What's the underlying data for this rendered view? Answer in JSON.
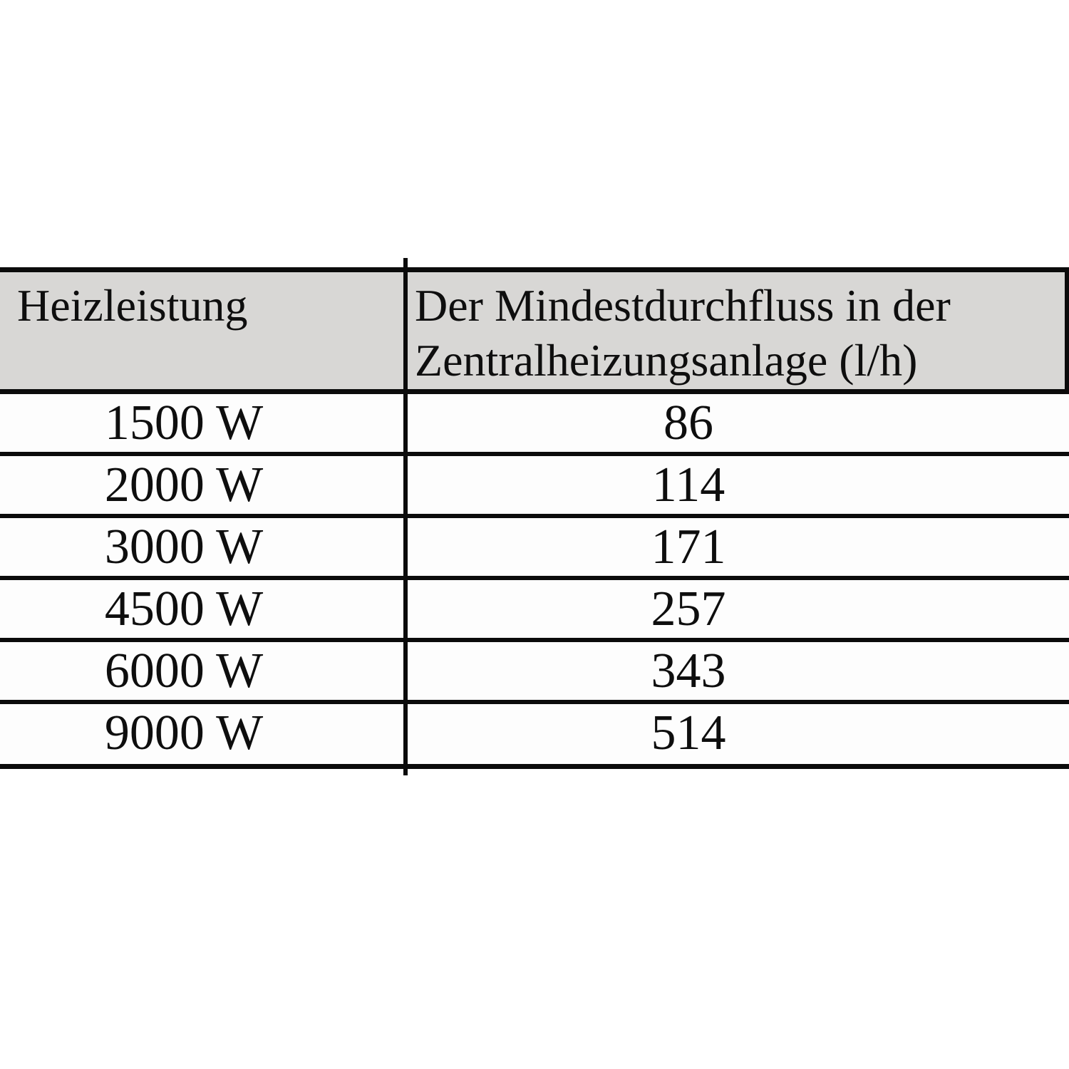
{
  "table": {
    "header": {
      "power_label": "Heizleistung",
      "flow_label_line1": "Der Mindestdurchfluss in der",
      "flow_label_line2": "Zentralheizungsanlage (l/h)"
    },
    "rows": [
      {
        "power": "1500 W",
        "flow": "86"
      },
      {
        "power": "2000 W",
        "flow": "114"
      },
      {
        "power": "3000 W",
        "flow": "171"
      },
      {
        "power": "4500 W",
        "flow": "257"
      },
      {
        "power": "6000 W",
        "flow": "343"
      },
      {
        "power": "9000 W",
        "flow": "514"
      }
    ]
  },
  "colors": {
    "page_background": "#ffffff",
    "header_background": "#d8d7d5",
    "row_background": "#fdfdfd",
    "line": "#0b0b0b",
    "text": "#0e0e0e"
  }
}
